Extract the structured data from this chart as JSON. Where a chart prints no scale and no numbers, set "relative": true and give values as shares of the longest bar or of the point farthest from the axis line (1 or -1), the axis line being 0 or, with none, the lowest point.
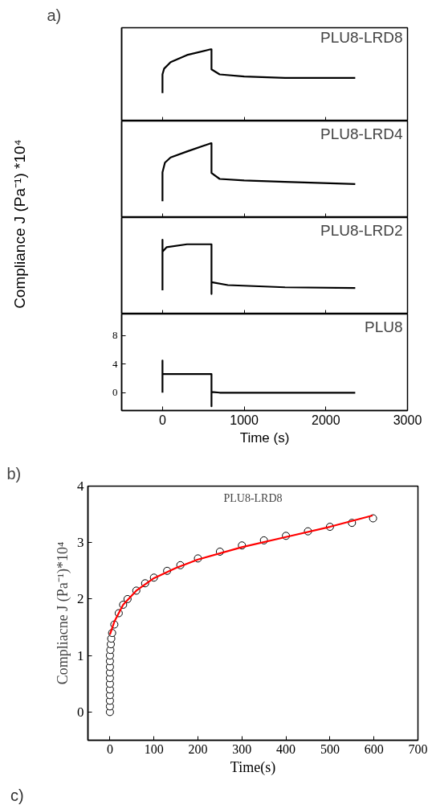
{
  "chart_data": [
    {
      "type": "line",
      "title": "a)",
      "relative": true,
      "xlim": [
        -500,
        3000
      ],
      "xticks": [
        0,
        1000,
        2000,
        3000
      ],
      "tick_labels": false,
      "grid": false,
      "series": [
        {
          "name": "PLU8-LRD8",
          "color": "#000000",
          "x": [
            0,
            0,
            20,
            100,
            300,
            590,
            600,
            600,
            700,
            1000,
            1500,
            2360
          ],
          "values": [
            0.39,
            0.65,
            0.73,
            0.82,
            0.92,
            1,
            1,
            0.72,
            0.65,
            0.62,
            0.6,
            0.6
          ]
        }
      ]
    },
    {
      "type": "line",
      "relative": true,
      "xlim": [
        -500,
        3000
      ],
      "xticks": [
        0,
        1000,
        2000,
        3000
      ],
      "tick_labels": false,
      "grid": false,
      "series": [
        {
          "name": "PLU8-LRD4",
          "color": "#000000",
          "x": [
            0,
            0,
            30,
            100,
            300,
            590,
            600,
            600,
            700,
            1000,
            1500,
            2360
          ],
          "values": [
            0.22,
            0.61,
            0.74,
            0.81,
            0.89,
            1,
            1,
            0.6,
            0.52,
            0.5,
            0.48,
            0.45
          ]
        }
      ]
    },
    {
      "type": "line",
      "relative": true,
      "xlim": [
        -500,
        3000
      ],
      "xticks": [
        0,
        1000,
        2000,
        3000
      ],
      "tick_labels": false,
      "grid": false,
      "series": [
        {
          "name": "PLU8-LRD2",
          "color": "#000000",
          "x": [
            0,
            0,
            0,
            50,
            300,
            600,
            600,
            600,
            800,
            1500,
            2360
          ],
          "values": [
            0.32,
            1,
            0.84,
            0.9,
            0.94,
            0.94,
            0.27,
            0.43,
            0.39,
            0.36,
            0.35
          ]
        }
      ]
    },
    {
      "type": "line",
      "xlabel": "Time (s)",
      "ylabel": "Compliance J (Pa⁻¹) *10⁴",
      "xlim": [
        -500,
        3000
      ],
      "xticks": [
        0,
        1000,
        2000,
        3000
      ],
      "ylim": [
        -2.5,
        11
      ],
      "yticks": [
        0,
        4,
        8
      ],
      "grid": false,
      "series": [
        {
          "name": "PLU8",
          "color": "#000000",
          "x": [
            0,
            0,
            0,
            50,
            300,
            600,
            600,
            600,
            700,
            1000,
            1500,
            2360
          ],
          "values": [
            0,
            4.5,
            2.6,
            2.6,
            2.6,
            2.6,
            -1.9,
            0.1,
            0,
            0,
            0,
            0
          ]
        }
      ]
    },
    {
      "type": "scatter",
      "title": "b)",
      "xlabel": "Time(s)",
      "ylabel": "Compliacne J (Pa⁻¹)*10⁴",
      "xlim": [
        -50,
        700
      ],
      "xticks": [
        0,
        100,
        200,
        300,
        400,
        500,
        600,
        700
      ],
      "ylim": [
        -0.5,
        4
      ],
      "yticks": [
        0,
        1,
        2,
        3,
        4
      ],
      "grid": false,
      "annotations": [
        "c)"
      ],
      "series": [
        {
          "name": "PLU8-LRD8",
          "color": "#000000",
          "marker": "circle",
          "x": [
            0,
            0,
            0,
            0,
            0,
            0,
            0,
            0,
            0,
            0,
            0,
            1,
            2,
            3,
            5,
            10,
            20,
            30,
            40,
            60,
            80,
            100,
            130,
            160,
            200,
            250,
            300,
            350,
            400,
            450,
            500,
            550,
            598
          ],
          "values": [
            0,
            0.1,
            0.2,
            0.3,
            0.4,
            0.5,
            0.6,
            0.7,
            0.8,
            0.9,
            1.0,
            1.1,
            1.2,
            1.3,
            1.4,
            1.55,
            1.75,
            1.9,
            2.0,
            2.15,
            2.28,
            2.38,
            2.5,
            2.6,
            2.72,
            2.84,
            2.95,
            3.04,
            3.12,
            3.2,
            3.28,
            3.35,
            3.43
          ]
        },
        {
          "type": "line",
          "color": "#ff0000",
          "x": [
            0,
            10,
            30,
            60,
            100,
            150,
            200,
            300,
            400,
            500,
            597
          ],
          "values": [
            1.37,
            1.6,
            1.9,
            2.15,
            2.37,
            2.55,
            2.7,
            2.92,
            3.1,
            3.28,
            3.48
          ]
        }
      ]
    }
  ]
}
